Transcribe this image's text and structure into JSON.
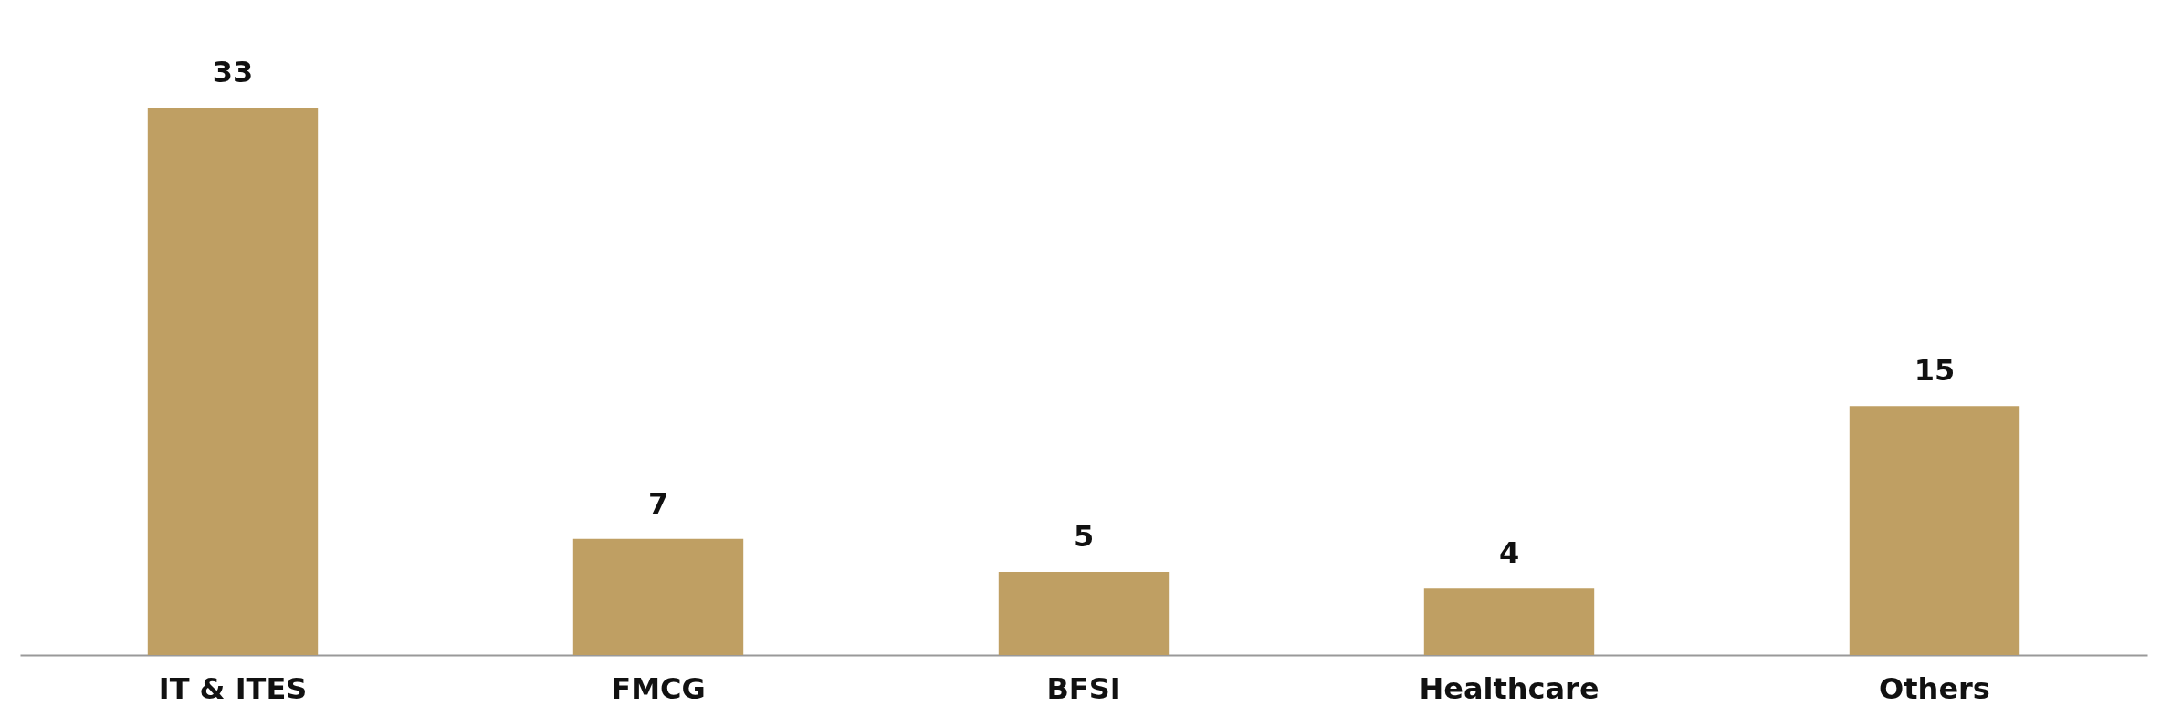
{
  "chart_data": {
    "type": "bar",
    "categories": [
      "IT & ITES",
      "FMCG",
      "BFSI",
      "Healthcare",
      "Others"
    ],
    "values": [
      33,
      7,
      5,
      4,
      15
    ],
    "color": "#bf9f63",
    "data_labels": true
  }
}
